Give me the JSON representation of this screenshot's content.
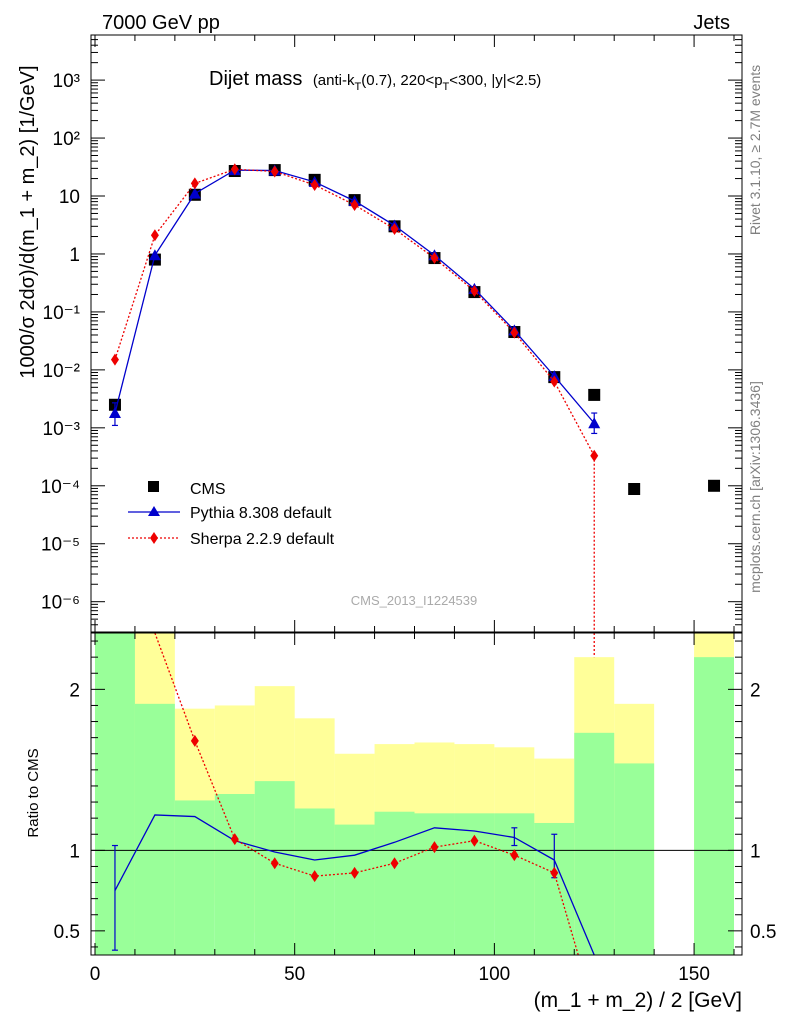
{
  "header": {
    "left": "7000 GeV pp",
    "right": "Jets"
  },
  "side_labels": {
    "rivet": "Rivet 3.1.10, ≥ 2.7M events",
    "mcplots": "mcplots.cern.ch [arXiv:1306.3436]"
  },
  "watermark": "CMS_2013_I1224539",
  "chart_data": [
    {
      "type": "scatter",
      "title": "Dijet mass",
      "title_detail": {
        "a": "(anti-k",
        "a_sub": "T",
        "b": "(0.7), 220<p",
        "b_sub": "T",
        "c": "<300, |y|<2.5)"
      },
      "ylabel": "1000/σ 2dσ)/d(m_1 + m_2) [1/GeV]",
      "xlim": [
        -1,
        162
      ],
      "ylim": [
        3e-07,
        6000
      ],
      "y_scale": "log",
      "y_ticks": [
        {
          "v": 1000,
          "l": "10³"
        },
        {
          "v": 100,
          "l": "10²"
        },
        {
          "v": 10,
          "l": "10"
        },
        {
          "v": 1,
          "l": "1"
        },
        {
          "v": 0.1,
          "l": "10⁻¹"
        },
        {
          "v": 0.01,
          "l": "10⁻²"
        },
        {
          "v": 0.001,
          "l": "10⁻³"
        },
        {
          "v": 0.0001,
          "l": "10⁻⁴"
        },
        {
          "v": 1e-05,
          "l": "10⁻⁵"
        },
        {
          "v": 1e-06,
          "l": "10⁻⁶"
        }
      ],
      "legend_position": "bottom-left",
      "legend": [
        "CMS",
        "Pythia 8.308 default",
        "Sherpa 2.2.9 default"
      ],
      "series": [
        {
          "name": "CMS",
          "color": "#000000",
          "marker": "square",
          "x": [
            5,
            15,
            25,
            35,
            45,
            55,
            65,
            75,
            85,
            95,
            105,
            115,
            125,
            135,
            155
          ],
          "y": [
            0.0025,
            0.8,
            10.5,
            27,
            28,
            19,
            8.5,
            3.0,
            0.85,
            0.22,
            0.045,
            0.0075,
            0.0037,
            8.8e-05,
            0.0001
          ]
        },
        {
          "name": "Pythia 8.308 default",
          "color": "#0000cc",
          "marker": "triangle",
          "line": "solid",
          "x": [
            5,
            15,
            25,
            35,
            45,
            55,
            65,
            75,
            85,
            95,
            105,
            115,
            125
          ],
          "y": [
            0.0018,
            0.95,
            11,
            28,
            27.5,
            17.5,
            8.2,
            3.1,
            0.95,
            0.25,
            0.048,
            0.0078,
            0.0012
          ],
          "yerr_low": [
            0.0011,
            null,
            null,
            null,
            null,
            null,
            null,
            null,
            null,
            null,
            null,
            null,
            0.0008
          ],
          "yerr_high": [
            0.0027,
            null,
            null,
            null,
            null,
            null,
            null,
            null,
            null,
            null,
            null,
            null,
            0.0018
          ]
        },
        {
          "name": "Sherpa 2.2.9 default",
          "color": "#ee0000",
          "marker": "diamond",
          "line": "dotted",
          "x": [
            5,
            15,
            25,
            35,
            45,
            55,
            65,
            75,
            85,
            95,
            105,
            115,
            125
          ],
          "y": [
            0.015,
            2.1,
            16.5,
            29,
            26.5,
            15.5,
            7.0,
            2.7,
            0.85,
            0.23,
            0.044,
            0.0063,
            0.00033
          ],
          "drop_after_x": 125
        }
      ]
    },
    {
      "type": "scatter",
      "ylabel": "Ratio to CMS",
      "xlabel": "(m_1 + m_2) / 2 [GeV]",
      "xlim": [
        -1,
        162
      ],
      "ylim": [
        0.35,
        2.35
      ],
      "x_ticks": [
        0,
        50,
        100,
        150
      ],
      "y_ticks": [
        {
          "v": 0.5,
          "l": "0.5"
        },
        {
          "v": 1,
          "l": "1"
        },
        {
          "v": 2,
          "l": "2"
        }
      ],
      "band_outer": {
        "color": "#ffff99",
        "bins": [
          [
            0,
            10,
            0.35,
            2.35
          ],
          [
            10,
            20,
            0.35,
            2.35
          ],
          [
            20,
            30,
            0.73,
            1.88
          ],
          [
            30,
            40,
            0.66,
            1.9
          ],
          [
            40,
            50,
            0.49,
            2.02
          ],
          [
            50,
            60,
            0.35,
            1.82
          ],
          [
            60,
            70,
            0.82,
            1.6
          ],
          [
            70,
            80,
            0.56,
            1.66
          ],
          [
            80,
            90,
            0.56,
            1.67
          ],
          [
            90,
            100,
            0.57,
            1.66
          ],
          [
            100,
            110,
            0.56,
            1.64
          ],
          [
            110,
            120,
            0.37,
            1.57
          ],
          [
            120,
            130,
            0.35,
            2.2
          ],
          [
            130,
            140,
            0.35,
            1.91
          ],
          [
            150,
            160,
            0.35,
            2.35
          ]
        ]
      },
      "band_inner": {
        "color": "#99ff99",
        "bins": [
          [
            0,
            10,
            0.35,
            2.35
          ],
          [
            10,
            20,
            0.35,
            1.91
          ],
          [
            20,
            30,
            0.35,
            1.31
          ],
          [
            30,
            40,
            0.35,
            1.35
          ],
          [
            40,
            50,
            0.35,
            1.43
          ],
          [
            50,
            60,
            0.35,
            1.26
          ],
          [
            60,
            70,
            0.35,
            1.16
          ],
          [
            70,
            80,
            0.35,
            1.24
          ],
          [
            80,
            90,
            0.35,
            1.23
          ],
          [
            90,
            100,
            0.35,
            1.23
          ],
          [
            100,
            110,
            0.35,
            1.23
          ],
          [
            110,
            120,
            0.35,
            1.17
          ],
          [
            120,
            130,
            0.35,
            1.73
          ],
          [
            130,
            140,
            0.35,
            1.54
          ],
          [
            150,
            160,
            0.35,
            2.2
          ]
        ]
      },
      "reference_line": 1,
      "series": [
        {
          "name": "Pythia 8.308 default",
          "color": "#0000cc",
          "marker": "none",
          "line": "solid",
          "x": [
            5,
            15,
            25,
            35,
            45,
            55,
            65,
            75,
            85,
            95,
            105,
            115,
            125
          ],
          "y": [
            0.75,
            1.22,
            1.21,
            1.06,
            0.99,
            0.94,
            0.97,
            1.05,
            1.14,
            1.12,
            1.08,
            0.94,
            0.28
          ],
          "yerr_low": [
            0.38,
            null,
            null,
            null,
            null,
            null,
            null,
            null,
            null,
            null,
            1.03,
            0.83,
            null
          ],
          "yerr_high": [
            1.03,
            null,
            null,
            null,
            null,
            null,
            null,
            null,
            null,
            null,
            1.14,
            1.1,
            null
          ]
        },
        {
          "name": "Sherpa 2.2.9 default",
          "color": "#ee0000",
          "marker": "diamond",
          "line": "dotted",
          "x": [
            15,
            25,
            35,
            45,
            55,
            65,
            75,
            85,
            95,
            105,
            115,
            121
          ],
          "y": [
            2.35,
            1.68,
            1.07,
            0.92,
            0.84,
            0.86,
            0.92,
            1.02,
            1.06,
            0.97,
            0.86,
            0.35
          ],
          "marker_mask": [
            false,
            true,
            true,
            true,
            true,
            true,
            true,
            true,
            true,
            true,
            true,
            false
          ]
        }
      ]
    }
  ]
}
